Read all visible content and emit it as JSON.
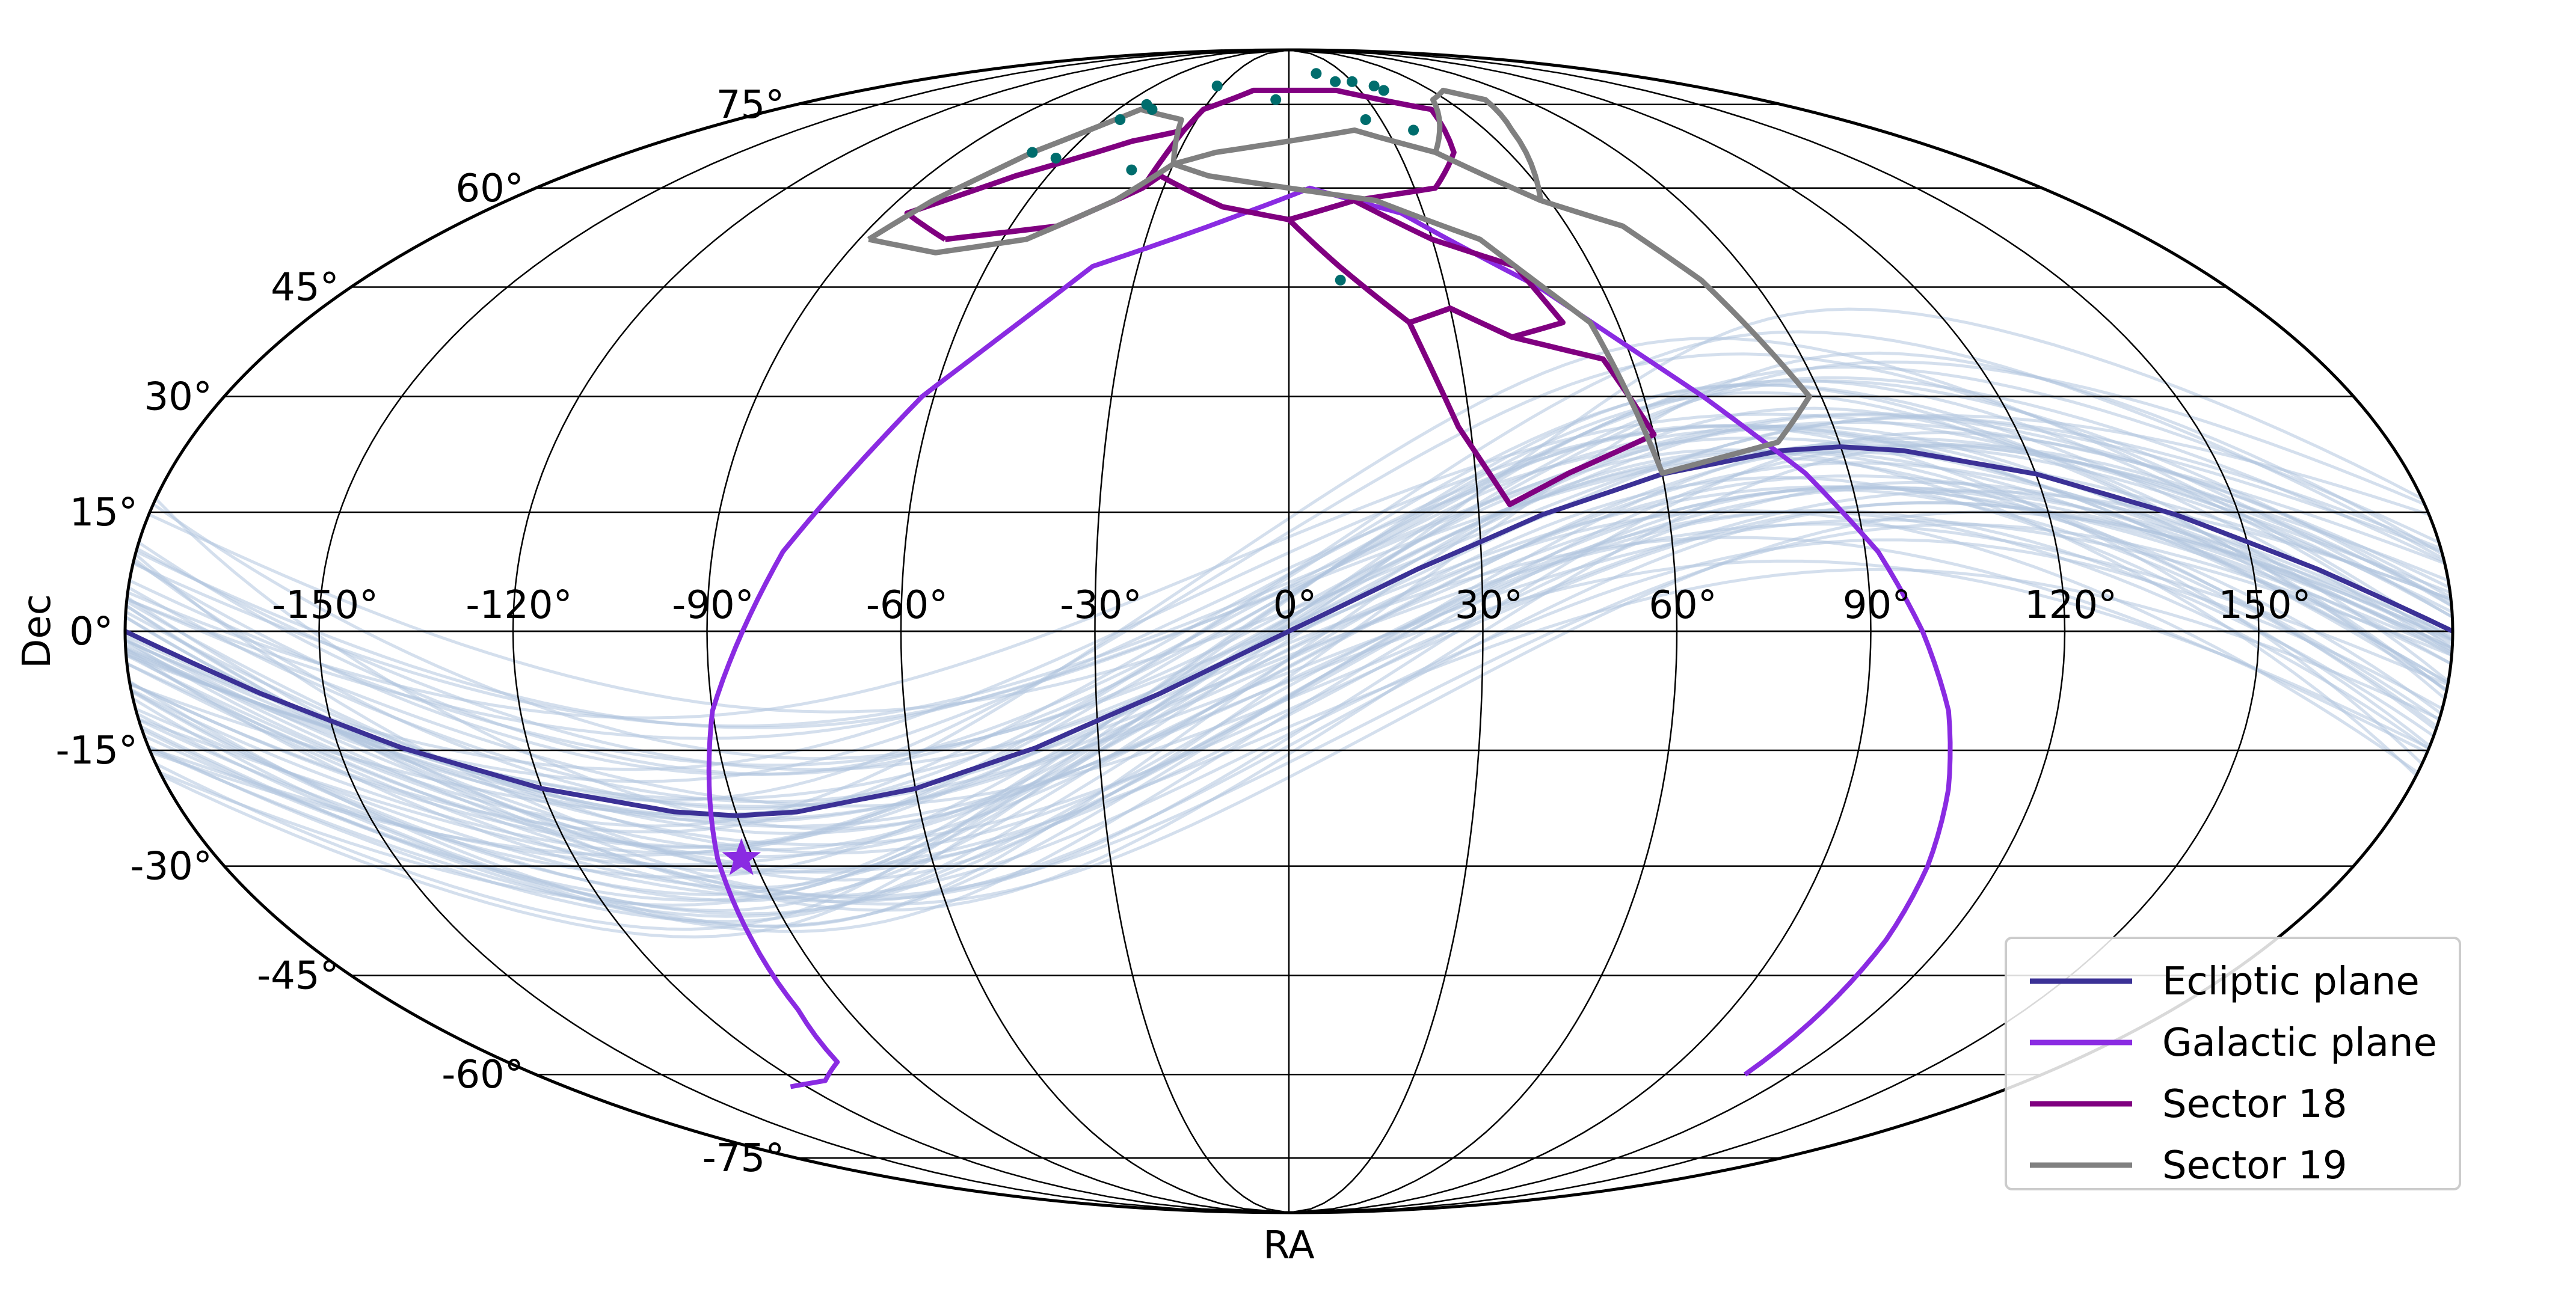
{
  "chart_data": {
    "type": "line",
    "projection": "mollweide",
    "xlabel": "RA",
    "ylabel": "Dec",
    "xlim": [
      -180,
      180
    ],
    "ylim": [
      -90,
      90
    ],
    "grid": true,
    "legend_placement": "lower-right",
    "ra_ticks": [
      -150,
      -120,
      -90,
      -60,
      -30,
      0,
      30,
      60,
      90,
      120,
      150
    ],
    "ra_tick_labels": [
      "-150°",
      "-120°",
      "-90°",
      "-60°",
      "-30°",
      "0°",
      "30°",
      "60°",
      "90°",
      "120°",
      "150°"
    ],
    "dec_ticks": [
      75,
      60,
      45,
      30,
      15,
      0,
      -15,
      -30,
      -45,
      -60,
      -75
    ],
    "dec_tick_labels": [
      "75°",
      "60°",
      "45°",
      "30°",
      "15°",
      "0°",
      "-15°",
      "-30°",
      "-45°",
      "-60°",
      "-75°"
    ],
    "series": [
      {
        "name": "Ecliptic plane",
        "color": "#3b3196",
        "points": [
          [
            -180,
            0
          ],
          [
            -160,
            -7.8
          ],
          [
            -140,
            -14.7
          ],
          [
            -120,
            -19.9
          ],
          [
            -100,
            -22.9
          ],
          [
            -90,
            -23.4
          ],
          [
            -80,
            -22.9
          ],
          [
            -60,
            -19.9
          ],
          [
            -40,
            -14.7
          ],
          [
            -20,
            -7.8
          ],
          [
            0,
            0
          ],
          [
            20,
            7.8
          ],
          [
            40,
            14.7
          ],
          [
            60,
            19.9
          ],
          [
            80,
            22.9
          ],
          [
            90,
            23.4
          ],
          [
            100,
            22.9
          ],
          [
            120,
            19.9
          ],
          [
            140,
            14.7
          ],
          [
            160,
            7.8
          ],
          [
            180,
            0
          ]
        ]
      },
      {
        "name": "Galactic plane",
        "color": "#8a2be2",
        "branches": [
          [
            [
              -124,
              -62
            ],
            [
              -113,
              -61
            ],
            [
              -104,
              -58
            ],
            [
              -100,
              -50
            ],
            [
              -98,
              -40
            ],
            [
              -96,
              -29
            ],
            [
              -90,
              -10
            ],
            [
              -79,
              10
            ],
            [
              -62,
              30
            ],
            [
              -39,
              48
            ],
            [
              -10,
              56
            ],
            [
              5,
              60
            ],
            [
              25,
              56
            ],
            [
              48,
              45
            ],
            [
              70,
              30
            ],
            [
              83,
              20
            ],
            [
              92,
              10
            ],
            [
              98,
              0
            ],
            [
              103,
              -10
            ],
            [
              106,
              -20
            ],
            [
              108,
              -30
            ],
            [
              109,
              -40
            ],
            [
              109,
              -52
            ],
            [
              109,
              -60
            ]
          ]
        ]
      },
      {
        "name": "Sector 18",
        "color": "#800080",
        "polygons": [
          [
            [
              -72,
              52
            ],
            [
              -50,
              54
            ],
            [
              -35,
              60
            ],
            [
              -32,
              70
            ],
            [
              -45,
              68
            ],
            [
              -68,
              62
            ],
            [
              -85,
              56
            ],
            [
              -72,
              52
            ]
          ],
          [
            [
              -32,
              70
            ],
            [
              -30,
              74
            ],
            [
              -15,
              78
            ],
            [
              5,
              78
            ],
            [
              20,
              78
            ],
            [
              35,
              76
            ],
            [
              50,
              74
            ],
            [
              45,
              66
            ],
            [
              35,
              60
            ],
            [
              15,
              58
            ],
            [
              0,
              55
            ],
            [
              -15,
              57
            ],
            [
              -32,
              62
            ],
            [
              -35,
              60
            ]
          ],
          [
            [
              0,
              55
            ],
            [
              15,
              58
            ],
            [
              30,
              52
            ],
            [
              45,
              48
            ],
            [
              50,
              40
            ],
            [
              40,
              38
            ],
            [
              30,
              42
            ],
            [
              22,
              40
            ],
            [
              10,
              48
            ],
            [
              0,
              55
            ]
          ],
          [
            [
              22,
              40
            ],
            [
              30,
              42
            ],
            [
              40,
              38
            ],
            [
              55,
              35
            ],
            [
              60,
              25
            ],
            [
              45,
              20
            ],
            [
              35,
              16
            ],
            [
              28,
              26
            ],
            [
              22,
              40
            ]
          ]
        ]
      },
      {
        "name": "Sector 19",
        "color": "#808080",
        "polygons": [
          [
            [
              -88,
              52
            ],
            [
              -72,
              50
            ],
            [
              -55,
              52
            ],
            [
              -40,
              58
            ],
            [
              -30,
              64
            ],
            [
              -35,
              72
            ],
            [
              -52,
              74
            ],
            [
              -70,
              66
            ],
            [
              -82,
              58
            ],
            [
              -88,
              52
            ]
          ],
          [
            [
              -30,
              64
            ],
            [
              -20,
              66
            ],
            [
              0,
              68
            ],
            [
              20,
              70
            ],
            [
              40,
              66
            ],
            [
              58,
              58
            ],
            [
              72,
              54
            ],
            [
              80,
              46
            ],
            [
              88,
              30
            ],
            [
              80,
              24
            ],
            [
              70,
              22
            ],
            [
              60,
              20
            ],
            [
              58,
              28
            ],
            [
              55,
              40
            ],
            [
              40,
              52
            ],
            [
              20,
              58
            ],
            [
              0,
              60
            ],
            [
              -20,
              62
            ],
            [
              -30,
              64
            ]
          ],
          [
            [
              40,
              66
            ],
            [
              55,
              76
            ],
            [
              65,
              78
            ],
            [
              75,
              76
            ],
            [
              68,
              70
            ],
            [
              58,
              58
            ]
          ]
        ]
      }
    ],
    "background_tracks": {
      "color": "#b0c4de",
      "count": 60,
      "description_hidden": true
    },
    "scatter_points": {
      "color": "#006d6d",
      "points": [
        [
          -70,
          66
        ],
        [
          -62,
          65
        ],
        [
          -55,
          72
        ],
        [
          -52,
          75
        ],
        [
          -48,
          74
        ],
        [
          -40,
          63
        ],
        [
          -32,
          79
        ],
        [
          -5,
          76
        ],
        [
          15,
          82
        ],
        [
          22,
          80
        ],
        [
          30,
          80
        ],
        [
          38,
          79
        ],
        [
          40,
          78
        ],
        [
          25,
          72
        ],
        [
          38,
          70
        ],
        [
          10,
          46
        ]
      ]
    },
    "star_marker": {
      "ra": -92,
      "dec": -29,
      "color": "#8a2be2"
    },
    "legend": [
      {
        "label": "Ecliptic plane",
        "color": "#3b3196"
      },
      {
        "label": "Galactic plane",
        "color": "#8a2be2"
      },
      {
        "label": "Sector 18",
        "color": "#800080"
      },
      {
        "label": "Sector 19",
        "color": "#808080"
      }
    ]
  }
}
